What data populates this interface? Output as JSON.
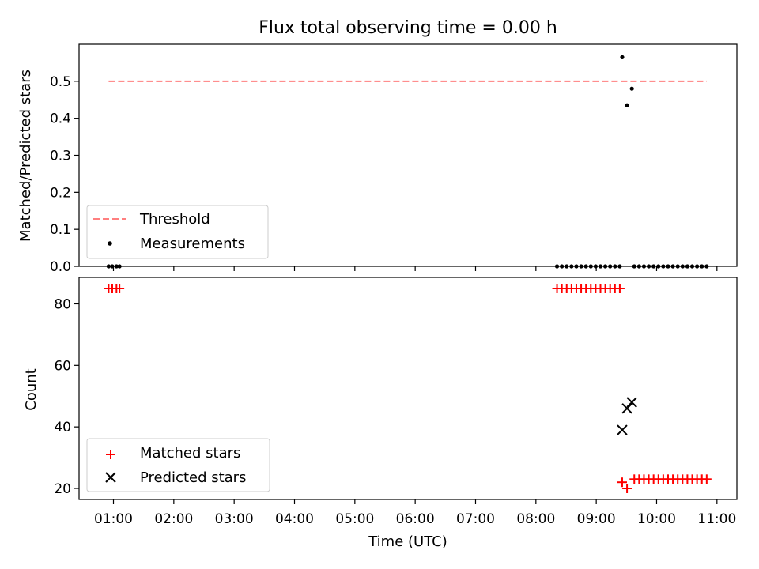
{
  "chart_data": [
    {
      "type": "scatter",
      "title": "Flux total observing time = 0.00 h",
      "xlabel": "",
      "ylabel": "Matched/Predicted stars",
      "x_unit": "hours UTC",
      "xlim": [
        0.43,
        11.33
      ],
      "ylim": [
        0,
        0.6
      ],
      "y_ticks": [
        0.0,
        0.1,
        0.2,
        0.3,
        0.4,
        0.5
      ],
      "y_tick_labels": [
        "0.0",
        "0.1",
        "0.2",
        "0.3",
        "0.4",
        "0.5"
      ],
      "legend_position": "lower-left",
      "series": [
        {
          "name": "Threshold",
          "style": "dashed-line",
          "color": "#ff7f7f",
          "x": [
            0.92,
            10.83
          ],
          "y": [
            0.5,
            0.5
          ]
        },
        {
          "name": "Measurements",
          "style": "dot",
          "color": "#000000",
          "x": [
            0.92,
            0.98,
            1.05,
            1.1,
            8.35,
            8.43,
            8.51,
            8.59,
            8.67,
            8.75,
            8.83,
            8.91,
            8.99,
            9.07,
            9.15,
            9.23,
            9.31,
            9.39,
            9.43,
            9.51,
            9.59,
            9.63,
            9.71,
            9.79,
            9.87,
            9.95,
            10.03,
            10.11,
            10.19,
            10.27,
            10.35,
            10.43,
            10.51,
            10.59,
            10.67,
            10.75,
            10.83
          ],
          "y": [
            0,
            0,
            0,
            0,
            0,
            0,
            0,
            0,
            0,
            0,
            0,
            0,
            0,
            0,
            0,
            0,
            0,
            0,
            0.565,
            0.435,
            0.48,
            0,
            0,
            0,
            0,
            0,
            0,
            0,
            0,
            0,
            0,
            0,
            0,
            0,
            0,
            0,
            0
          ]
        }
      ]
    },
    {
      "type": "scatter",
      "title": "",
      "xlabel": "Time (UTC)",
      "ylabel": "Count",
      "x_unit": "hours UTC",
      "xlim": [
        0.43,
        11.33
      ],
      "ylim": [
        16.4,
        88.6
      ],
      "y_ticks": [
        20,
        40,
        60,
        80
      ],
      "y_tick_labels": [
        "20",
        "40",
        "60",
        "80"
      ],
      "x_ticks": [
        1,
        2,
        3,
        4,
        5,
        6,
        7,
        8,
        9,
        10,
        11
      ],
      "x_tick_labels": [
        "01:00",
        "02:00",
        "03:00",
        "04:00",
        "05:00",
        "06:00",
        "07:00",
        "08:00",
        "09:00",
        "10:00",
        "11:00"
      ],
      "legend_position": "lower-left",
      "series": [
        {
          "name": "Matched stars",
          "marker": "plus",
          "color": "#ff0000",
          "x": [
            0.92,
            0.98,
            1.05,
            1.1,
            8.35,
            8.43,
            8.51,
            8.59,
            8.67,
            8.75,
            8.83,
            8.91,
            8.99,
            9.07,
            9.15,
            9.23,
            9.31,
            9.39,
            9.43,
            9.51,
            9.63,
            9.71,
            9.79,
            9.87,
            9.95,
            10.03,
            10.11,
            10.19,
            10.27,
            10.35,
            10.43,
            10.51,
            10.59,
            10.67,
            10.75,
            10.83
          ],
          "y": [
            85,
            85,
            85,
            85,
            85,
            85,
            85,
            85,
            85,
            85,
            85,
            85,
            85,
            85,
            85,
            85,
            85,
            85,
            22,
            20,
            23,
            23,
            23,
            23,
            23,
            23,
            23,
            23,
            23,
            23,
            23,
            23,
            23,
            23,
            23,
            23
          ]
        },
        {
          "name": "Predicted stars",
          "marker": "x",
          "color": "#000000",
          "x": [
            9.43,
            9.51,
            9.59
          ],
          "y": [
            39,
            46,
            48
          ]
        }
      ]
    }
  ]
}
